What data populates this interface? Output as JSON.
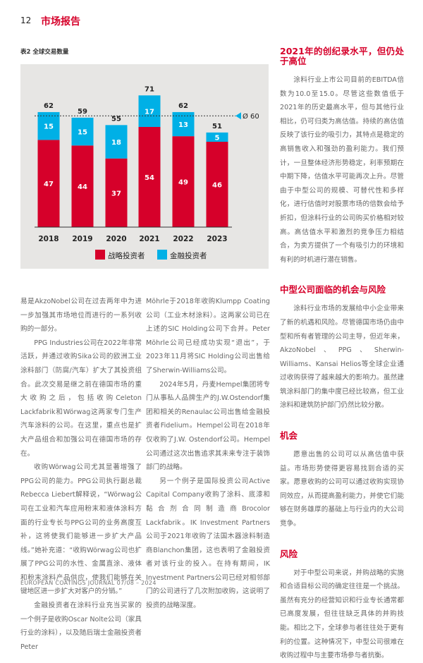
{
  "header": {
    "page_number": "12",
    "section": "市场报告"
  },
  "figure_caption": "表2 全球交易数量",
  "chart_data": {
    "type": "bar",
    "stacked": true,
    "categories": [
      "2018",
      "2019",
      "2020",
      "2021",
      "2022",
      "2023"
    ],
    "series": [
      {
        "name": "战略投资者",
        "values": [
          47,
          44,
          37,
          54,
          49,
          46
        ],
        "color": "#d6002a"
      },
      {
        "name": "金融投资者",
        "values": [
          15,
          15,
          18,
          17,
          13,
          5
        ],
        "color": "#00b0e6"
      }
    ],
    "totals": [
      62,
      59,
      55,
      71,
      62,
      51
    ],
    "reference_line": {
      "value": 60,
      "label": "Ø 60",
      "style": "dashed"
    },
    "ylim": [
      0,
      75
    ],
    "grid": false,
    "legend": "bottom"
  },
  "columns": {
    "left": [
      "易是AkzoNobel公司在过去两年中为进一步加强其市场地位而进行的一系列收购的一部分。",
      "PPG Industries公司在2022年非常活跃，并通过收购Sika公司的欧洲工业涂料部门（防腐/汽车）扩大了其投资组合。此次交易是继之前在德国市场的重大收购之后，包括收购Celeton Lackfabrik和Wörwag这两家专门生产汽车涂料的公司。在这里，重点也是扩大产品组合和加强公司在德国市场的存在。",
      "收购Wörwag公司尤其显著增强了PPG公司的能力。PPG公司执行副总裁Rebecca Liebert解释说，“Wörwag公司在工业和汽车应用粉末和液体涂料方面的行业专长与PPG公司的业务高度互补，这将使我们能够进一步扩大产品线。”她补充道：“收购Wörwag公司也扩展了PPG公司的水性、金属直涂、液体和粉末涂料产品供应，使我们能够在关键地区进一步扩大对客户的分销。”",
      "金融投资者在涂料行业充当买家的一个例子是收购Oscar Nolte公司（家具行业的涂料），以及随后瑞士金融投资者Peter"
    ],
    "middle": [
      "Möhrle于2018年收购Klumpp Coating公司（工业木材涂料）。这两家公司已在上述的SIC Holding公司下合并。Peter Möhrle公司已经成功实现“退出”，于2023年11月将SIC Holding公司出售给了Sherwin-Williams公司。",
      "2024年5月，丹麦Hempel集团将专门从事私人品牌生产的J.W.Ostendorf集团和相关的Renaulac公司出售给金融投资者Fidelium。Hempel公司在2018年仅收购了J.W. Ostendorf公司。Hempel公司通过这次出售追求其未来专注于装饰部门的战略。",
      "另一个例子是国际投资公司Active Capital Company收购了涂料、底漆和黏合剂合同制造商Brocolor Lackfabrik。IK Investment Partners公司于2021年收购了法国木器涂料制造商Blanchon集团，这也表明了金融投资者对该行业的投入。在持有期间，IK Investment Partners公司已经对相邻部门的公司进行了几次附加收购，这说明了投资的战略深度。"
    ],
    "right": [
      {
        "heading": "2021年的创纪录水平，但仍处于高位",
        "text": "涂料行业上市公司目前的EBITDA倍数为10.0至15.0。尽管这些数值低于2021年的历史最高水平，但与其他行业相比，仍可归类为高估值。持续的高估值反映了该行业的吸引力，其特点是稳定的高销售收入和强劲的盈利能力。我们预计，一旦整体经济形势稳定，利率预期在中期下降，估值水平可能再次上升。尽管由于中型公司的规模、可替代性和多样化，进行估值时对股票市场的倍数会给予折扣，但涂料行业的公司购买价格相对较高。高估值水平和激烈的竞争压力相结合，为卖方提供了一个有吸引力的环境和有利的时机进行潜在销售。"
      },
      {
        "heading": "中型公司面临的机会与风险",
        "text": "涂料行业市场的发展给中小企业带来了新的机遇和风险。尽管德国市场仍由中型和所有者管理的公司主导，但近年来，AkzoNobel、PPG、Sherwin-Williams、Kansai Helios等全球企业通过收购获得了越来越大的影响力。虽然建筑涂料部门的集中度已经比较高，但工业涂料和建筑防护部门仍然比较分散。"
      },
      {
        "heading": "机会",
        "text": "愿意出售的公司可以从高估值中获益。市场形势使得更容易找到合适的买家。愿意收购的公司可以通过收购实现协同效应，从而提高盈利能力，并使它们能够在财务雄厚的基础上与行业内的大公司竞争。"
      },
      {
        "heading": "风险",
        "text": "对于中型公司来说，并购战略的实施和合适目标公司的确定往往是一个挑战。虽然有充分的经营知识和行业专长通常都已高度发展，但往往缺乏具体的并购技能。相比之下，全球参与者往往处于更有利的位置。这种情况下，中型公司很难在收购过程中与主要市场参与者抗衡。"
      }
    ]
  },
  "footer": "EUROPEAN COATINGS JOURNAL 07/08 – 2024"
}
